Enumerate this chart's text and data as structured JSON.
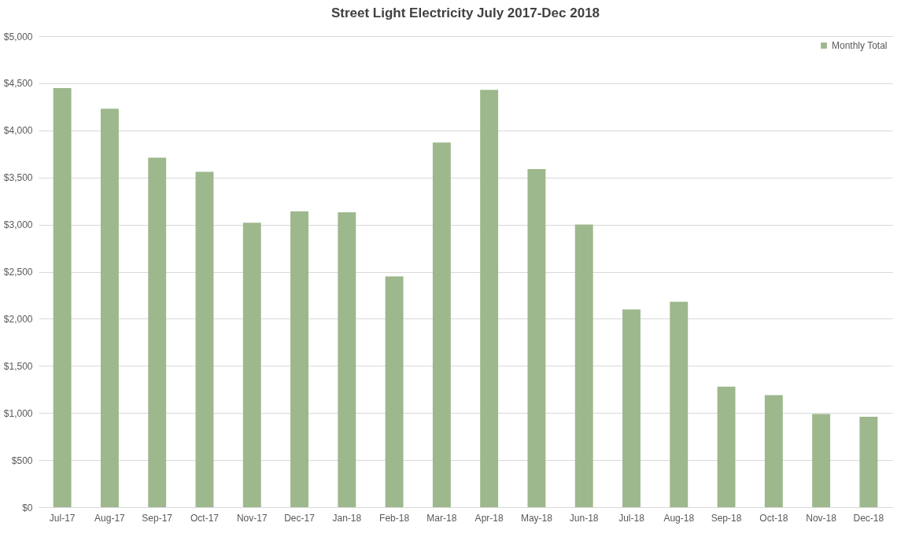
{
  "chart_data": {
    "type": "bar",
    "title": "Street Light Electricity July 2017-Dec 2018",
    "categories": [
      "Jul-17",
      "Aug-17",
      "Sep-17",
      "Oct-17",
      "Nov-17",
      "Dec-17",
      "Jan-18",
      "Feb-18",
      "Mar-18",
      "Apr-18",
      "May-18",
      "Jun-18",
      "Jul-18",
      "Aug-18",
      "Sep-18",
      "Oct-18",
      "Nov-18",
      "Dec-18"
    ],
    "series": [
      {
        "name": "Monthly Total",
        "color": "#9db88c",
        "values": [
          4450,
          4230,
          3710,
          3560,
          3020,
          3140,
          3130,
          2450,
          3870,
          4430,
          3590,
          3000,
          2100,
          2180,
          1280,
          1190,
          990,
          960
        ]
      }
    ],
    "ylim": [
      0,
      5000
    ],
    "yticks": [
      {
        "value": 0,
        "label": "$0"
      },
      {
        "value": 500,
        "label": "$500"
      },
      {
        "value": 1000,
        "label": "$1,000"
      },
      {
        "value": 1500,
        "label": "$1,500"
      },
      {
        "value": 2000,
        "label": "$2,000"
      },
      {
        "value": 2500,
        "label": "$2,500"
      },
      {
        "value": 3000,
        "label": "$3,000"
      },
      {
        "value": 3500,
        "label": "$3,500"
      },
      {
        "value": 4000,
        "label": "$4,000"
      },
      {
        "value": 4500,
        "label": "$4,500"
      },
      {
        "value": 5000,
        "label": "$5,000"
      }
    ],
    "grid": "y",
    "legend": "top right"
  }
}
